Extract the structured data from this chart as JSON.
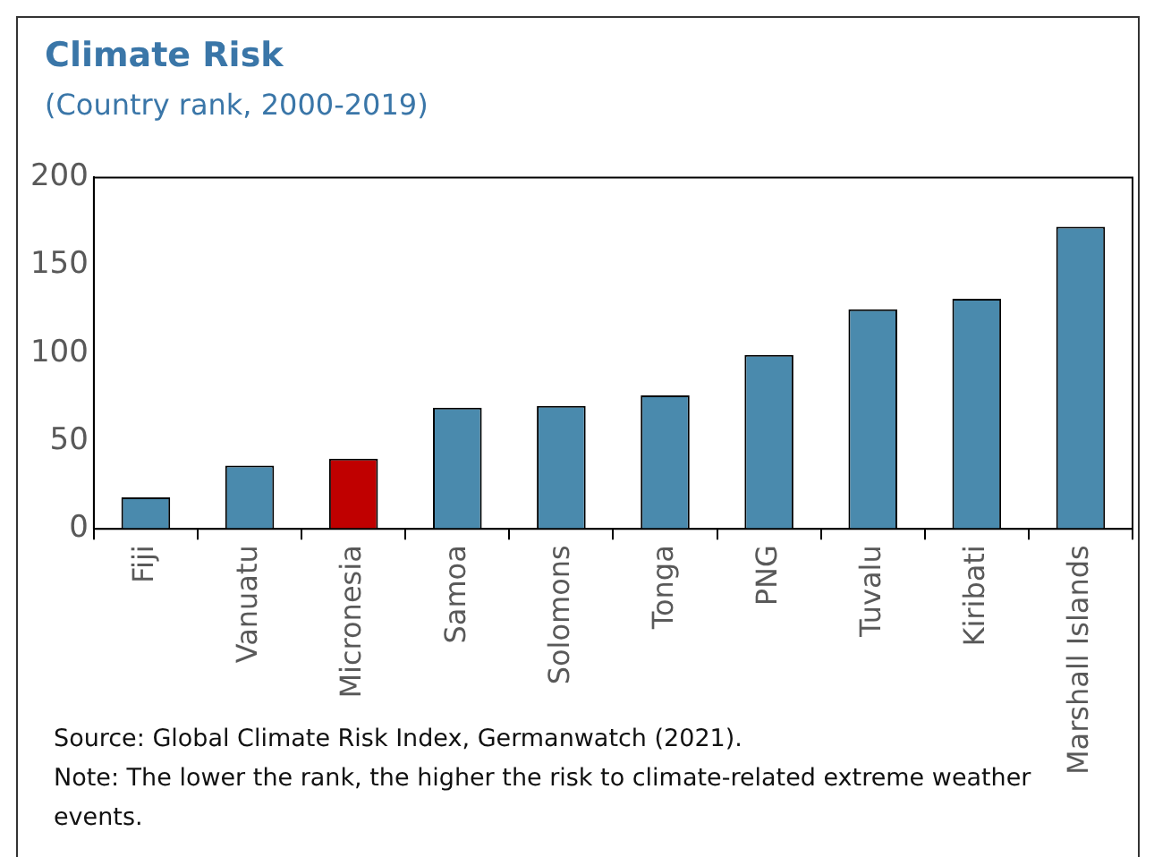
{
  "chart_data": {
    "type": "bar",
    "title": "Climate Risk",
    "subtitle": "(Country rank, 2000-2019)",
    "categories": [
      "Fiji",
      "Vanuatu",
      "Micronesia",
      "Samoa",
      "Solomons",
      "Tonga",
      "PNG",
      "Tuvalu",
      "Kiribati",
      "Marshall Islands"
    ],
    "values": [
      18,
      36,
      40,
      69,
      70,
      76,
      99,
      125,
      131,
      172
    ],
    "colors": [
      "#4a8aad",
      "#4a8aad",
      "#c00000",
      "#4a8aad",
      "#4a8aad",
      "#4a8aad",
      "#4a8aad",
      "#4a8aad",
      "#4a8aad",
      "#4a8aad"
    ],
    "ylim": [
      0,
      200
    ],
    "yticks": [
      0,
      50,
      100,
      150,
      200
    ],
    "grid": false,
    "legend": false,
    "annotations": [
      "Source: Global Climate Risk Index, Germanwatch (2021).",
      "Note: The lower the rank, the higher the risk to climate-related extreme weather events."
    ]
  }
}
